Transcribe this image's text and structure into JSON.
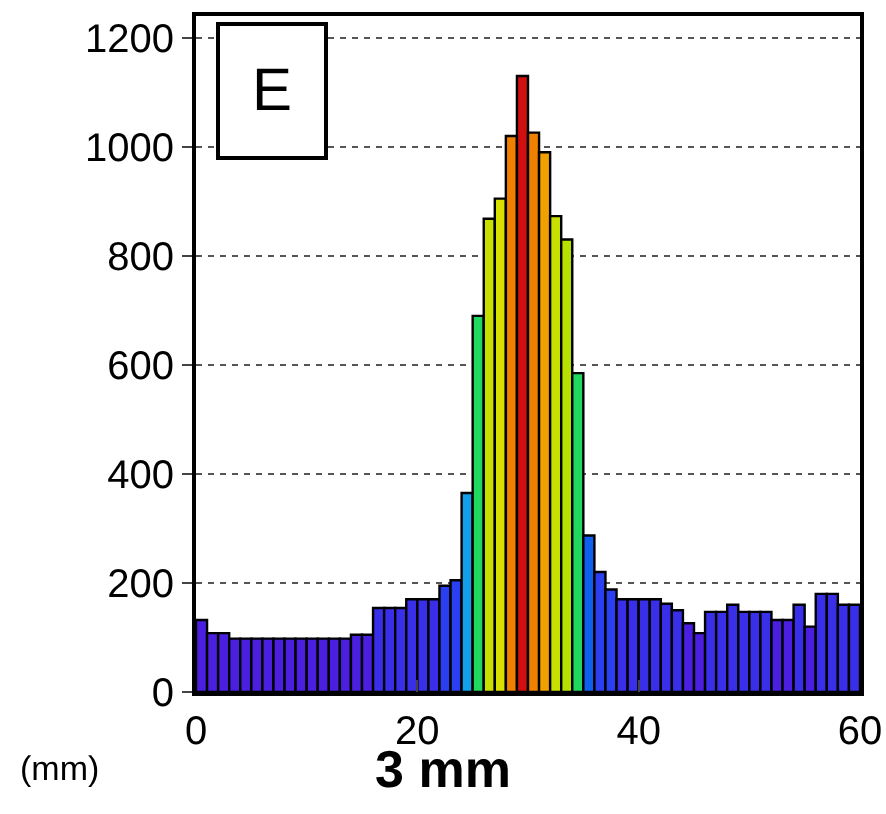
{
  "chart_data": {
    "type": "histogram",
    "title": "3 mm",
    "annotations": [
      "E",
      "(mm)"
    ],
    "bins": [
      0,
      1,
      2,
      3,
      4,
      5,
      6,
      7,
      8,
      9,
      10,
      11,
      12,
      13,
      14,
      15,
      16,
      17,
      18,
      19,
      20,
      21,
      22,
      23,
      24,
      25,
      26,
      27,
      28,
      29,
      30,
      31,
      32,
      33,
      34,
      35,
      36,
      37,
      38,
      39,
      40,
      41,
      42,
      43,
      44,
      45,
      46,
      47,
      48,
      49,
      50,
      51,
      52,
      53,
      54,
      55,
      56,
      57,
      58,
      59,
      60
    ],
    "values": [
      132,
      108,
      108,
      98,
      98,
      98,
      98,
      98,
      98,
      98,
      98,
      98,
      98,
      98,
      105,
      105,
      154,
      154,
      154,
      170,
      170,
      170,
      195,
      205,
      365,
      690,
      868,
      905,
      1020,
      1130,
      1026,
      990,
      873,
      830,
      585,
      287,
      220,
      188,
      170,
      170,
      170,
      170,
      162,
      150,
      126,
      108,
      147,
      147,
      160,
      147,
      147,
      147,
      132,
      132,
      160,
      120,
      180,
      180,
      160,
      160
    ],
    "colors": [
      "#4b1fe0",
      "#4b1fe0",
      "#4b1fe0",
      "#4b1fe0",
      "#4b1fe0",
      "#4b1fe0",
      "#4b1fe0",
      "#4b1fe0",
      "#4b1fe0",
      "#4b1fe0",
      "#4b1fe0",
      "#4b1fe0",
      "#4b1fe0",
      "#4b1fe0",
      "#4b1fe0",
      "#4b1fe0",
      "#3a2fe8",
      "#3a2fe8",
      "#3a2fe8",
      "#3a2fe8",
      "#3a2fe8",
      "#3a2fe8",
      "#2a40f0",
      "#2a40f0",
      "#14a0e8",
      "#20d860",
      "#c8e000",
      "#d8e000",
      "#f08000",
      "#d01010",
      "#f08000",
      "#f0a000",
      "#c8e000",
      "#b8e000",
      "#20d860",
      "#1060f0",
      "#2a40f0",
      "#2a40f0",
      "#3a2fe8",
      "#3a2fe8",
      "#3a2fe8",
      "#3a2fe8",
      "#3a2fe8",
      "#3a2fe8",
      "#4b1fe0",
      "#4b1fe0",
      "#3a2fe8",
      "#3a2fe8",
      "#3a2fe8",
      "#3a2fe8",
      "#3a2fe8",
      "#3a2fe8",
      "#4b1fe0",
      "#4b1fe0",
      "#3a2fe8",
      "#4b1fe0",
      "#3a2fe8",
      "#3a2fe8",
      "#3a2fe8",
      "#3a2fe8"
    ],
    "xlim": [
      0,
      60
    ],
    "xticks": [
      0,
      20,
      40,
      60
    ],
    "ylim": [
      0,
      1240
    ],
    "yticks": [
      0,
      200,
      400,
      600,
      800,
      1000,
      1200
    ],
    "grid": "y",
    "line_style": "dotted",
    "legend": false
  }
}
